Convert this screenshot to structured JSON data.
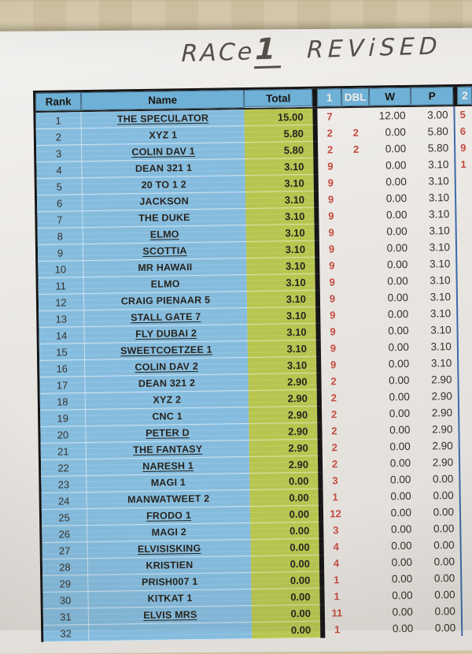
{
  "photo": {
    "desk_color": "#d7caa8",
    "paper_color": "#e9e6e2"
  },
  "handwriting": {
    "word1": "RACe",
    "number": "1",
    "word2": "REViSED",
    "ink_color": "#55514a"
  },
  "table": {
    "colors": {
      "cell_blue": "#85bcde",
      "header_blue": "#6fb0d6",
      "cell_green": "#b7c54f",
      "red_text": "#c4493e",
      "right_border_blue": "#3c6aa9",
      "ink": "#27241e"
    },
    "headers": {
      "rank": "Rank",
      "name": "Name",
      "total": "Total",
      "win": "1",
      "dbl": "DBL",
      "w": "W",
      "p": "P",
      "next": "2"
    },
    "rows": [
      {
        "rank": "1",
        "name": "THE SPECULATOR",
        "u": true,
        "total": "15.00",
        "win": "7",
        "dbl": "",
        "w": "12.00",
        "p": "3.00",
        "next": "5"
      },
      {
        "rank": "2",
        "name": "XYZ 1",
        "u": false,
        "total": "5.80",
        "win": "2",
        "dbl": "2",
        "w": "0.00",
        "p": "5.80",
        "next": "6"
      },
      {
        "rank": "3",
        "name": "COLIN DAV 1",
        "u": true,
        "total": "5.80",
        "win": "2",
        "dbl": "2",
        "w": "0.00",
        "p": "5.80",
        "next": "9"
      },
      {
        "rank": "4",
        "name": "DEAN 321 1",
        "u": false,
        "total": "3.10",
        "win": "9",
        "dbl": "",
        "w": "0.00",
        "p": "3.10",
        "next": "1"
      },
      {
        "rank": "5",
        "name": "20 TO 1 2",
        "u": false,
        "total": "3.10",
        "win": "9",
        "dbl": "",
        "w": "0.00",
        "p": "3.10",
        "next": ""
      },
      {
        "rank": "6",
        "name": "JACKSON",
        "u": false,
        "total": "3.10",
        "win": "9",
        "dbl": "",
        "w": "0.00",
        "p": "3.10",
        "next": ""
      },
      {
        "rank": "7",
        "name": "THE DUKE",
        "u": false,
        "total": "3.10",
        "win": "9",
        "dbl": "",
        "w": "0.00",
        "p": "3.10",
        "next": ""
      },
      {
        "rank": "8",
        "name": "ELMO",
        "u": true,
        "total": "3.10",
        "win": "9",
        "dbl": "",
        "w": "0.00",
        "p": "3.10",
        "next": ""
      },
      {
        "rank": "9",
        "name": "SCOTTIA",
        "u": true,
        "total": "3.10",
        "win": "9",
        "dbl": "",
        "w": "0.00",
        "p": "3.10",
        "next": ""
      },
      {
        "rank": "10",
        "name": "MR HAWAII",
        "u": false,
        "total": "3.10",
        "win": "9",
        "dbl": "",
        "w": "0.00",
        "p": "3.10",
        "next": ""
      },
      {
        "rank": "11",
        "name": "ELMO",
        "u": false,
        "total": "3.10",
        "win": "9",
        "dbl": "",
        "w": "0.00",
        "p": "3.10",
        "next": ""
      },
      {
        "rank": "12",
        "name": "CRAIG PIENAAR 5",
        "u": false,
        "total": "3.10",
        "win": "9",
        "dbl": "",
        "w": "0.00",
        "p": "3.10",
        "next": ""
      },
      {
        "rank": "13",
        "name": "STALL GATE 7",
        "u": true,
        "total": "3.10",
        "win": "9",
        "dbl": "",
        "w": "0.00",
        "p": "3.10",
        "next": ""
      },
      {
        "rank": "14",
        "name": "FLY DUBAI 2",
        "u": true,
        "total": "3.10",
        "win": "9",
        "dbl": "",
        "w": "0.00",
        "p": "3.10",
        "next": ""
      },
      {
        "rank": "15",
        "name": "SWEETCOETZEE 1",
        "u": true,
        "total": "3.10",
        "win": "9",
        "dbl": "",
        "w": "0.00",
        "p": "3.10",
        "next": ""
      },
      {
        "rank": "16",
        "name": "COLIN DAV 2",
        "u": true,
        "total": "3.10",
        "win": "9",
        "dbl": "",
        "w": "0.00",
        "p": "3.10",
        "next": ""
      },
      {
        "rank": "17",
        "name": "DEAN 321 2",
        "u": false,
        "total": "2.90",
        "win": "2",
        "dbl": "",
        "w": "0.00",
        "p": "2.90",
        "next": ""
      },
      {
        "rank": "18",
        "name": "XYZ 2",
        "u": false,
        "total": "2.90",
        "win": "2",
        "dbl": "",
        "w": "0.00",
        "p": "2.90",
        "next": ""
      },
      {
        "rank": "19",
        "name": "CNC 1",
        "u": false,
        "total": "2.90",
        "win": "2",
        "dbl": "",
        "w": "0.00",
        "p": "2.90",
        "next": ""
      },
      {
        "rank": "20",
        "name": "PETER D",
        "u": true,
        "total": "2.90",
        "win": "2",
        "dbl": "",
        "w": "0.00",
        "p": "2.90",
        "next": ""
      },
      {
        "rank": "21",
        "name": "THE FANTASY",
        "u": true,
        "total": "2.90",
        "win": "2",
        "dbl": "",
        "w": "0.00",
        "p": "2.90",
        "next": ""
      },
      {
        "rank": "22",
        "name": "NARESH 1",
        "u": true,
        "total": "2.90",
        "win": "2",
        "dbl": "",
        "w": "0.00",
        "p": "2.90",
        "next": ""
      },
      {
        "rank": "23",
        "name": "MAGI 1",
        "u": false,
        "total": "0.00",
        "win": "3",
        "dbl": "",
        "w": "0.00",
        "p": "0.00",
        "next": ""
      },
      {
        "rank": "24",
        "name": "MANWATWEET 2",
        "u": false,
        "total": "0.00",
        "win": "1",
        "dbl": "",
        "w": "0.00",
        "p": "0.00",
        "next": ""
      },
      {
        "rank": "25",
        "name": "FRODO 1",
        "u": true,
        "total": "0.00",
        "win": "12",
        "dbl": "",
        "w": "0.00",
        "p": "0.00",
        "next": ""
      },
      {
        "rank": "26",
        "name": "MAGI 2",
        "u": false,
        "total": "0.00",
        "win": "3",
        "dbl": "",
        "w": "0.00",
        "p": "0.00",
        "next": ""
      },
      {
        "rank": "27",
        "name": "ELVISISKING",
        "u": true,
        "total": "0.00",
        "win": "4",
        "dbl": "",
        "w": "0.00",
        "p": "0.00",
        "next": ""
      },
      {
        "rank": "28",
        "name": "KRISTIEN",
        "u": false,
        "total": "0.00",
        "win": "4",
        "dbl": "",
        "w": "0.00",
        "p": "0.00",
        "next": ""
      },
      {
        "rank": "29",
        "name": "PRISH007 1",
        "u": false,
        "total": "0.00",
        "win": "1",
        "dbl": "",
        "w": "0.00",
        "p": "0.00",
        "next": ""
      },
      {
        "rank": "30",
        "name": "KITKAT 1",
        "u": false,
        "total": "0.00",
        "win": "1",
        "dbl": "",
        "w": "0.00",
        "p": "0.00",
        "next": ""
      },
      {
        "rank": "31",
        "name": "ELVIS MRS",
        "u": true,
        "total": "0.00",
        "win": "11",
        "dbl": "",
        "w": "0.00",
        "p": "0.00",
        "next": ""
      },
      {
        "rank": "32",
        "name": "",
        "u": false,
        "total": "0.00",
        "win": "1",
        "dbl": "",
        "w": "0.00",
        "p": "0.00",
        "next": ""
      }
    ]
  }
}
